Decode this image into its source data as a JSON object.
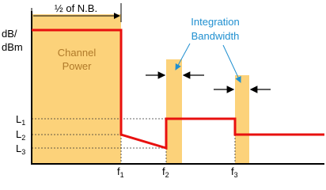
{
  "header": {
    "span_label": "½ of N.B.",
    "axis_label": [
      "dB/",
      "dBm"
    ]
  },
  "regions": {
    "channel": [
      "Channel",
      "Power"
    ]
  },
  "callout": [
    "Integration",
    "Bandwidth"
  ],
  "levels": [
    {
      "symbol": "L",
      "sub": "1"
    },
    {
      "symbol": "L",
      "sub": "2"
    },
    {
      "symbol": "L",
      "sub": "3"
    }
  ],
  "frequencies": [
    {
      "symbol": "f",
      "sub": "1"
    },
    {
      "symbol": "f",
      "sub": "2"
    },
    {
      "symbol": "f",
      "sub": "3"
    }
  ]
}
